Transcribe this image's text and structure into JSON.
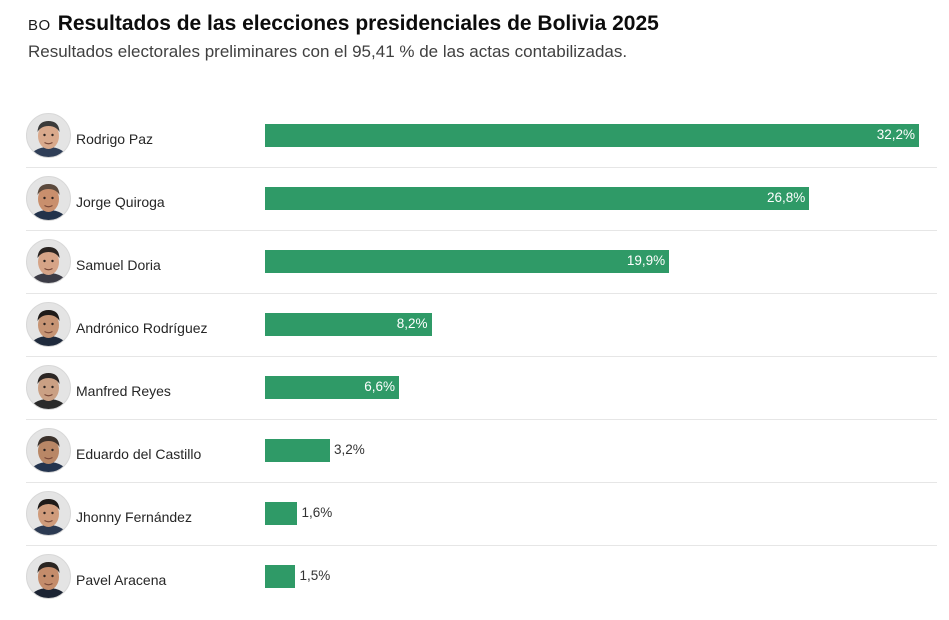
{
  "header": {
    "country_code": "BO",
    "title": "Resultados de las elecciones presidenciales de Bolivia 2025",
    "subtitle": "Resultados electorales preliminares con el 95,41 % de las actas contabilizadas."
  },
  "colors": {
    "bar": "#2f9a67",
    "inside_label": "#ffffff",
    "outside_label": "#333333"
  },
  "chart_data": {
    "type": "bar",
    "orientation": "horizontal",
    "title": "Resultados de las elecciones presidenciales de Bolivia 2025",
    "subtitle": "Resultados electorales preliminares con el 95,41 % de las actas contabilizadas.",
    "categories": [
      "Rodrigo Paz",
      "Jorge Quiroga",
      "Samuel Doria",
      "Andrónico Rodríguez",
      "Manfred Reyes",
      "Eduardo del Castillo",
      "Jhonny Fernández",
      "Pavel Aracena"
    ],
    "values": [
      32.2,
      26.8,
      19.9,
      8.2,
      6.6,
      3.2,
      1.6,
      1.5
    ],
    "labels": [
      "32,2%",
      "26,8%",
      "19,9%",
      "8,2%",
      "6,6%",
      "3,2%",
      "1,6%",
      "1,5%"
    ],
    "unit": "%",
    "xlim": [
      0,
      32.2
    ],
    "grid": false,
    "legend": "none"
  }
}
